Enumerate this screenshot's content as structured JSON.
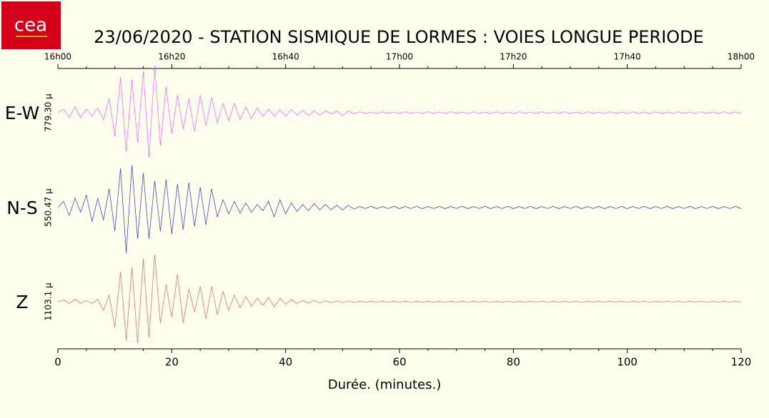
{
  "chart_data": {
    "type": "line",
    "logo": "cea",
    "title": "23/06/2020  -  STATION SISMIQUE DE LORMES : VOIES LONGUE PERIODE",
    "xlabel": "Durée.  (minutes.)",
    "xlim": [
      0,
      120
    ],
    "xticks": [
      0,
      20,
      40,
      60,
      80,
      100,
      120
    ],
    "xminorticks": [
      5,
      10,
      15,
      25,
      30,
      35,
      45,
      50,
      55,
      65,
      70,
      75,
      85,
      90,
      95,
      105,
      110,
      115
    ],
    "x2ticks": [
      {
        "value": 0,
        "label": "16h00"
      },
      {
        "value": 20,
        "label": "16h20"
      },
      {
        "value": 40,
        "label": "16h40"
      },
      {
        "value": 60,
        "label": "17h00"
      },
      {
        "value": 80,
        "label": "17h20"
      },
      {
        "value": 100,
        "label": "17h40"
      },
      {
        "value": 120,
        "label": "18h00"
      }
    ],
    "x": [
      0,
      1,
      2,
      3,
      4,
      5,
      6,
      7,
      8,
      9,
      10,
      11,
      12,
      13,
      14,
      15,
      16,
      17,
      18,
      19,
      20,
      21,
      22,
      23,
      24,
      25,
      26,
      27,
      28,
      29,
      30,
      31,
      32,
      33,
      34,
      35,
      36,
      37,
      38,
      39,
      40,
      41,
      42,
      43,
      44,
      45,
      46,
      47,
      48,
      49,
      50,
      51,
      52,
      53,
      54,
      55,
      56,
      57,
      58,
      59,
      60,
      61,
      62,
      63,
      64,
      65,
      66,
      67,
      68,
      69,
      70,
      71,
      72,
      73,
      74,
      75,
      76,
      77,
      78,
      79,
      80,
      81,
      82,
      83,
      84,
      85,
      86,
      87,
      88,
      89,
      90,
      91,
      92,
      93,
      94,
      95,
      96,
      97,
      98,
      99,
      100,
      101,
      102,
      103,
      104,
      105,
      106,
      107,
      108,
      109,
      110,
      111,
      112,
      113,
      114,
      115,
      116,
      117,
      118,
      119,
      120
    ],
    "series": [
      {
        "name": "E-W",
        "scale_label": "779.30 µ",
        "color": "#ff66ff",
        "ylim": [
          -400,
          400
        ],
        "values": [
          0,
          30,
          -40,
          50,
          -40,
          30,
          -30,
          40,
          -60,
          120,
          -200,
          300,
          -330,
          280,
          -250,
          350,
          -380,
          400,
          -280,
          220,
          -180,
          150,
          -140,
          120,
          -160,
          150,
          -110,
          130,
          -90,
          80,
          -70,
          80,
          -60,
          50,
          -50,
          40,
          -30,
          30,
          -30,
          25,
          -30,
          30,
          -20,
          20,
          -25,
          15,
          -20,
          15,
          -10,
          15,
          -25,
          15,
          -10,
          8,
          -7,
          6,
          -8,
          8,
          -7,
          6,
          -8,
          8,
          -7,
          6,
          -8,
          8,
          -7,
          6,
          -8,
          8,
          -7,
          6,
          -8,
          8,
          -7,
          6,
          -8,
          8,
          -7,
          6,
          -8,
          8,
          -7,
          6,
          -8,
          8,
          -7,
          6,
          -8,
          8,
          -7,
          6,
          -8,
          8,
          -7,
          6,
          -8,
          8,
          -7,
          6,
          -8,
          8,
          -7,
          6,
          -8,
          8,
          -7,
          6,
          -8,
          8,
          -7,
          6,
          -8,
          8,
          -7,
          6,
          -8,
          8,
          -7,
          6,
          -8
        ]
      },
      {
        "name": "N-S",
        "scale_label": "550.47 µ",
        "color": "#4444ee",
        "ylim": [
          -300,
          300
        ],
        "values": [
          0,
          40,
          -50,
          60,
          -30,
          80,
          -90,
          60,
          -80,
          120,
          -150,
          250,
          -290,
          270,
          -200,
          220,
          -200,
          170,
          -150,
          180,
          -170,
          150,
          -140,
          160,
          -120,
          130,
          -110,
          120,
          -60,
          50,
          -40,
          40,
          -35,
          30,
          -30,
          20,
          -20,
          40,
          -60,
          50,
          -40,
          30,
          -25,
          20,
          -20,
          25,
          -15,
          20,
          -15,
          15,
          -15,
          15,
          -10,
          7,
          -6,
          8,
          -7,
          7,
          -6,
          8,
          -7,
          7,
          -6,
          8,
          -7,
          7,
          -6,
          8,
          -7,
          7,
          -6,
          8,
          -7,
          7,
          -6,
          8,
          -7,
          7,
          -6,
          8,
          -7,
          7,
          -6,
          8,
          -7,
          7,
          -6,
          8,
          -7,
          7,
          -6,
          8,
          -7,
          7,
          -6,
          8,
          -7,
          7,
          -6,
          8,
          -7,
          7,
          -6,
          8,
          -7,
          7,
          -6,
          8,
          -7,
          7,
          -6,
          8,
          -7,
          7,
          -6,
          8,
          -7,
          7,
          -6,
          8,
          -7
        ]
      },
      {
        "name": "Z",
        "scale_label": "1103.1 µ",
        "color": "#f07060",
        "ylim": [
          -550,
          550
        ],
        "values": [
          0,
          20,
          -20,
          30,
          -20,
          15,
          -20,
          30,
          -100,
          80,
          -300,
          350,
          -450,
          400,
          -480,
          500,
          -420,
          550,
          -250,
          200,
          -180,
          320,
          -250,
          150,
          -120,
          180,
          -200,
          180,
          -150,
          120,
          -100,
          80,
          -70,
          60,
          -50,
          40,
          -40,
          50,
          -60,
          40,
          -30,
          25,
          -20,
          15,
          -15,
          15,
          -12,
          12,
          -10,
          10,
          -10,
          10,
          -8,
          6,
          -5,
          6,
          -6,
          6,
          -5,
          6,
          -6,
          6,
          -5,
          6,
          -6,
          6,
          -5,
          6,
          -6,
          6,
          -5,
          6,
          -6,
          6,
          -5,
          6,
          -6,
          6,
          -5,
          6,
          -6,
          6,
          -5,
          6,
          -6,
          6,
          -5,
          6,
          -6,
          6,
          -5,
          6,
          -6,
          6,
          -5,
          6,
          -6,
          6,
          -5,
          6,
          -6,
          6,
          -5,
          6,
          -6,
          6,
          -5,
          6,
          -6,
          6,
          -5,
          6,
          -6,
          6,
          -5,
          6,
          -6,
          6,
          -5,
          6,
          -6
        ]
      }
    ]
  }
}
